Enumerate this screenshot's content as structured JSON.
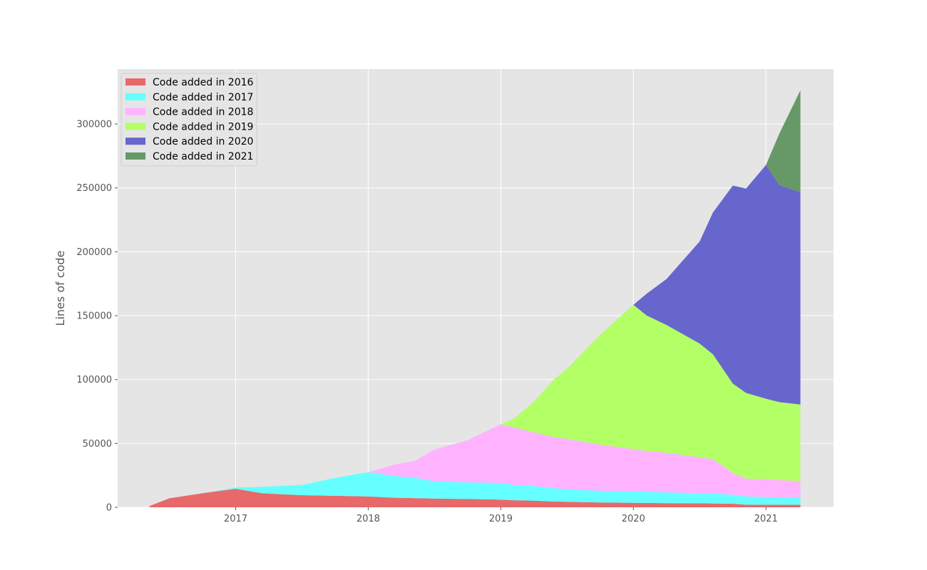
{
  "chart_data": {
    "type": "area",
    "stacked": true,
    "title": "",
    "xlabel": "",
    "ylabel": "Lines of code",
    "xlim": [
      2016.11,
      2021.51
    ],
    "ylim": [
      0,
      343000
    ],
    "grid": true,
    "legend_position": "top-left",
    "x_ticks": [
      {
        "value": 2017,
        "label": "2017"
      },
      {
        "value": 2018,
        "label": "2018"
      },
      {
        "value": 2019,
        "label": "2019"
      },
      {
        "value": 2020,
        "label": "2020"
      },
      {
        "value": 2021,
        "label": "2021"
      }
    ],
    "y_ticks": [
      {
        "value": 0,
        "label": "0"
      },
      {
        "value": 50000,
        "label": "50000"
      },
      {
        "value": 100000,
        "label": "100000"
      },
      {
        "value": 150000,
        "label": "150000"
      },
      {
        "value": 200000,
        "label": "200000"
      },
      {
        "value": 250000,
        "label": "250000"
      },
      {
        "value": 300000,
        "label": "300000"
      }
    ],
    "x": [
      2016.35,
      2016.5,
      2016.75,
      2017.0,
      2017.2,
      2017.5,
      2017.75,
      2018.0,
      2018.2,
      2018.35,
      2018.5,
      2018.75,
      2019.0,
      2019.1,
      2019.25,
      2019.4,
      2019.5,
      2019.75,
      2020.0,
      2020.1,
      2020.25,
      2020.5,
      2020.6,
      2020.75,
      2020.85,
      2021.0,
      2021.1,
      2021.26
    ],
    "series": [
      {
        "name": "Code added in 2016",
        "color": "#e8696a",
        "values": [
          1000,
          7000,
          11000,
          14500,
          11000,
          9500,
          9000,
          8500,
          7500,
          7200,
          6800,
          6500,
          6000,
          5500,
          5200,
          4500,
          4300,
          3800,
          3500,
          3400,
          3200,
          3100,
          3000,
          2800,
          2000,
          2000,
          2000,
          2000
        ]
      },
      {
        "name": "Code added in 2017",
        "color": "#66ffff",
        "values": [
          0,
          0,
          0,
          1000,
          5000,
          8000,
          14000,
          19000,
          17000,
          16000,
          13500,
          13000,
          13000,
          12000,
          11500,
          10500,
          9800,
          9200,
          9000,
          8800,
          8500,
          8000,
          7800,
          7000,
          6500,
          6000,
          5800,
          5500
        ]
      },
      {
        "name": "Code added in 2018",
        "color": "#ffb3ff",
        "values": [
          0,
          0,
          0,
          0,
          0,
          0,
          0,
          0,
          9000,
          13000,
          25000,
          33000,
          46000,
          45000,
          42000,
          40000,
          39500,
          36000,
          33000,
          32000,
          31000,
          28000,
          27000,
          17000,
          14000,
          14000,
          13500,
          13000
        ]
      },
      {
        "name": "Code added in 2019",
        "color": "#b3ff66",
        "values": [
          0,
          0,
          0,
          0,
          0,
          0,
          0,
          0,
          0,
          0,
          0,
          0,
          0,
          7000,
          24000,
          45000,
          55000,
          86000,
          113000,
          106000,
          100000,
          89000,
          82000,
          70000,
          67000,
          63000,
          61000,
          60000
        ]
      },
      {
        "name": "Code added in 2020",
        "color": "#6766cc",
        "values": [
          0,
          0,
          0,
          0,
          0,
          0,
          0,
          0,
          0,
          0,
          0,
          0,
          0,
          0,
          0,
          0,
          0,
          0,
          0,
          17000,
          36000,
          80000,
          111000,
          155000,
          160000,
          183000,
          170000,
          166000
        ]
      },
      {
        "name": "Code added in 2021",
        "color": "#669966",
        "values": [
          0,
          0,
          0,
          0,
          0,
          0,
          0,
          0,
          0,
          0,
          0,
          0,
          0,
          0,
          0,
          0,
          0,
          0,
          0,
          0,
          0,
          0,
          0,
          0,
          0,
          0,
          40000,
          80000
        ]
      }
    ]
  }
}
